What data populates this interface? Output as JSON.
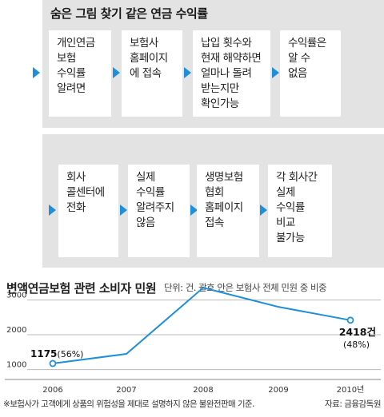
{
  "top_panel": {
    "title": "숨은 그림 찾기 같은 연금 수익률",
    "steps": [
      "개인연금\n보험\n수익률\n알려면",
      "보험사\n홈페이지\n에 접속",
      "납입 횟수와\n현재 해약하면\n얼마나 돌려\n받는지만\n확인가능",
      "수익률은\n알 수\n없음"
    ]
  },
  "bottom_panel": {
    "steps": [
      "회사\n콜센터에\n전화",
      "실제\n수익률\n알려주지\n않음",
      "생명보험\n협회\n홈페이지\n접속",
      "각 회사간\n실제\n수익률\n비교\n불가능"
    ]
  },
  "chart": {
    "title": "변액연금보험 관련 소비자 민원",
    "unit_note": "단위: 건. 괄호 안은 보험사 전체 민원 중 비중",
    "footnote": "※보험사가 고객에게 상품의 위험성을 제대로 설명하지 않은 불완전판매 기준.",
    "source": "자료: 금융감독원",
    "first_label_value": "1175",
    "first_label_pct": "(56%)",
    "last_label_value": "2418건",
    "last_label_pct": "(48%)",
    "colors": {
      "line": "#1f8fd8",
      "arrow": "#1f8fd8"
    }
  },
  "chart_data": {
    "type": "line",
    "title": "변액연금보험 관련 소비자 민원",
    "x": [
      "2006",
      "2007",
      "2008",
      "2009",
      "2010년"
    ],
    "series": [
      {
        "values": [
          1175,
          1450,
          3350,
          2800,
          2418
        ]
      }
    ],
    "yticks": [
      1000,
      2000,
      3000
    ],
    "ylim": [
      900,
      3400
    ],
    "grid": true
  }
}
